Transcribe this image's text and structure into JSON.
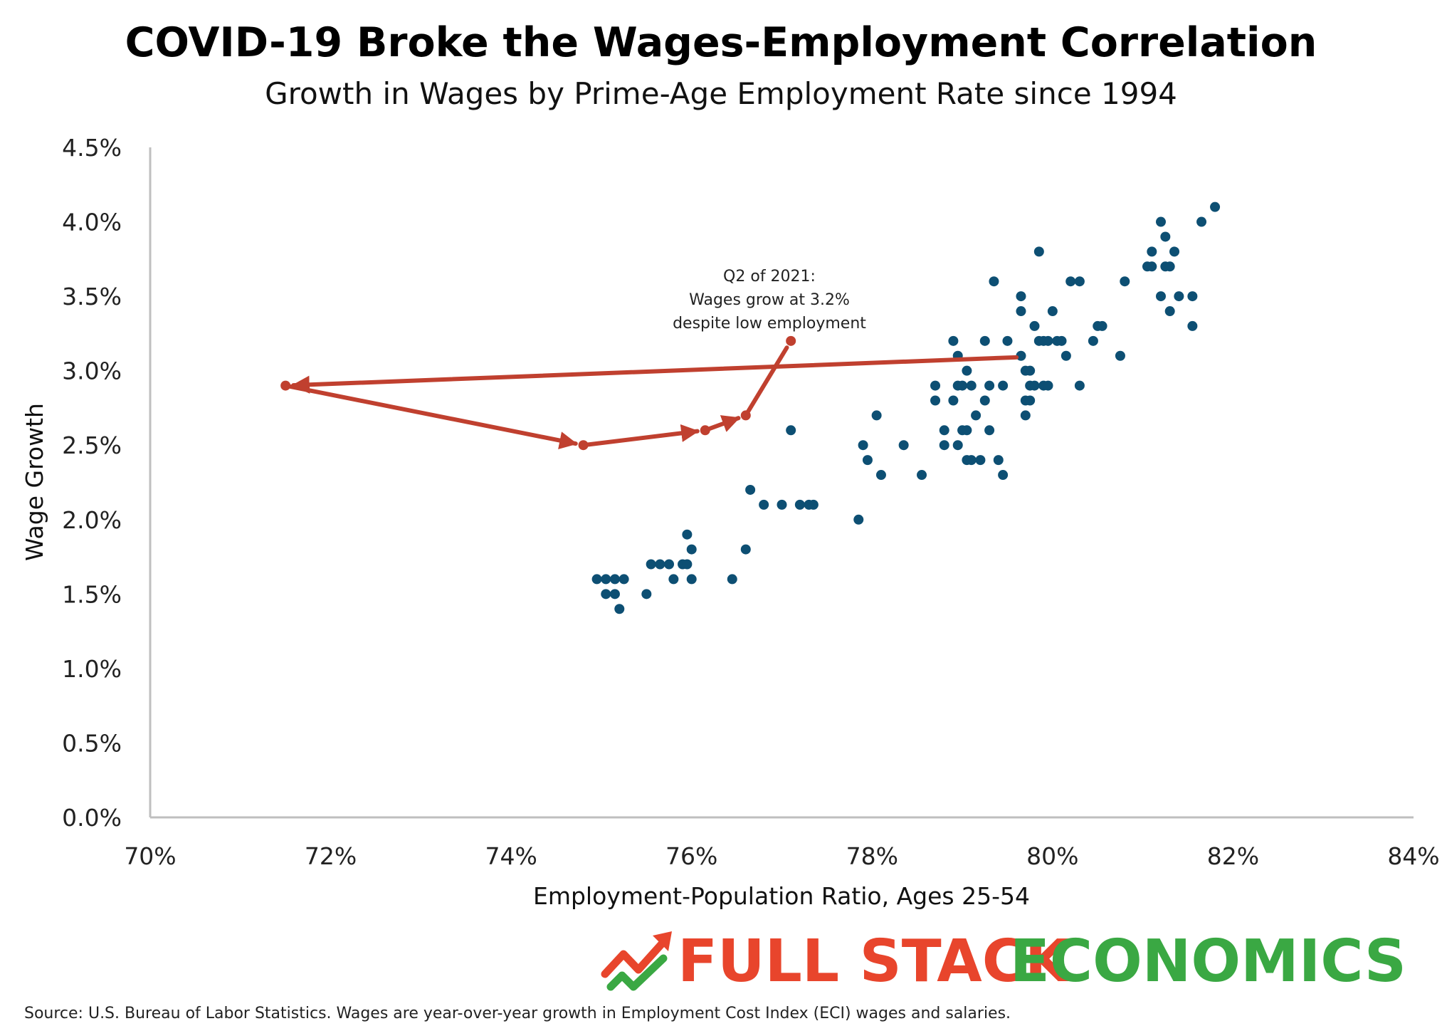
{
  "colors": {
    "dot": "#0d4f73",
    "path": "#c0402f",
    "axis": "#bfbfbf",
    "logo_red": "#e8452c",
    "logo_green": "#3aa843"
  },
  "chart_data": {
    "type": "scatter",
    "title": "COVID-19 Broke the Wages-Employment Correlation",
    "subtitle": "Growth in Wages by Prime-Age Employment Rate since 1994",
    "xlabel": "Employment-Population Ratio, Ages 25-54",
    "ylabel": "Wage Growth",
    "xlim": [
      70,
      84
    ],
    "ylim": [
      0,
      4.5
    ],
    "x_ticks": [
      70,
      72,
      74,
      76,
      78,
      80,
      82,
      84
    ],
    "x_tick_labels": [
      "70%",
      "72%",
      "74%",
      "76%",
      "78%",
      "80%",
      "82%",
      "84%"
    ],
    "y_ticks": [
      0,
      0.5,
      1,
      1.5,
      2,
      2.5,
      3,
      3.5,
      4,
      4.5
    ],
    "y_tick_labels": [
      "0.0%",
      "0.5%",
      "1.0%",
      "1.5%",
      "2.0%",
      "2.5%",
      "3.0%",
      "3.5%",
      "4.0%",
      "4.5%"
    ],
    "grid": false,
    "points": [
      [
        74.95,
        1.6
      ],
      [
        75.05,
        1.6
      ],
      [
        75.15,
        1.6
      ],
      [
        75.25,
        1.6
      ],
      [
        75.05,
        1.5
      ],
      [
        75.15,
        1.5
      ],
      [
        75.2,
        1.4
      ],
      [
        75.5,
        1.5
      ],
      [
        75.55,
        1.7
      ],
      [
        75.65,
        1.7
      ],
      [
        75.75,
        1.7
      ],
      [
        75.8,
        1.6
      ],
      [
        75.9,
        1.7
      ],
      [
        75.95,
        1.7
      ],
      [
        75.95,
        1.9
      ],
      [
        76.0,
        1.8
      ],
      [
        76.0,
        1.6
      ],
      [
        76.45,
        1.6
      ],
      [
        76.6,
        1.8
      ],
      [
        76.65,
        2.2
      ],
      [
        76.8,
        2.1
      ],
      [
        77.0,
        2.1
      ],
      [
        77.1,
        2.6
      ],
      [
        77.2,
        2.1
      ],
      [
        77.3,
        2.1
      ],
      [
        77.35,
        2.1
      ],
      [
        77.85,
        2.0
      ],
      [
        77.9,
        2.5
      ],
      [
        77.95,
        2.4
      ],
      [
        78.05,
        2.7
      ],
      [
        78.1,
        2.3
      ],
      [
        78.35,
        2.5
      ],
      [
        78.55,
        2.3
      ],
      [
        78.7,
        2.9
      ],
      [
        78.7,
        2.8
      ],
      [
        78.8,
        2.5
      ],
      [
        78.8,
        2.6
      ],
      [
        78.9,
        2.8
      ],
      [
        78.9,
        3.2
      ],
      [
        78.95,
        3.1
      ],
      [
        78.95,
        2.9
      ],
      [
        78.95,
        2.5
      ],
      [
        79.0,
        2.6
      ],
      [
        79.05,
        2.6
      ],
      [
        79.0,
        2.9
      ],
      [
        79.05,
        3.0
      ],
      [
        79.05,
        2.4
      ],
      [
        79.1,
        2.4
      ],
      [
        79.1,
        2.9
      ],
      [
        79.15,
        2.7
      ],
      [
        79.2,
        2.4
      ],
      [
        79.25,
        3.2
      ],
      [
        79.25,
        2.8
      ],
      [
        79.3,
        2.9
      ],
      [
        79.3,
        2.6
      ],
      [
        79.35,
        3.6
      ],
      [
        79.4,
        2.4
      ],
      [
        79.45,
        2.9
      ],
      [
        79.45,
        2.3
      ],
      [
        79.5,
        3.2
      ],
      [
        79.65,
        3.1
      ],
      [
        79.65,
        3.5
      ],
      [
        79.65,
        3.4
      ],
      [
        79.7,
        3.0
      ],
      [
        79.7,
        2.8
      ],
      [
        79.7,
        2.7
      ],
      [
        79.75,
        3.0
      ],
      [
        79.75,
        2.9
      ],
      [
        79.75,
        2.8
      ],
      [
        79.8,
        3.3
      ],
      [
        79.8,
        2.9
      ],
      [
        79.85,
        3.8
      ],
      [
        79.85,
        3.2
      ],
      [
        79.9,
        3.2
      ],
      [
        79.9,
        2.9
      ],
      [
        79.95,
        3.2
      ],
      [
        79.95,
        2.9
      ],
      [
        80.0,
        3.4
      ],
      [
        80.05,
        3.2
      ],
      [
        80.1,
        3.2
      ],
      [
        80.15,
        3.1
      ],
      [
        80.2,
        3.6
      ],
      [
        80.3,
        3.6
      ],
      [
        80.3,
        2.9
      ],
      [
        80.45,
        3.2
      ],
      [
        80.5,
        3.3
      ],
      [
        80.55,
        3.3
      ],
      [
        80.75,
        3.1
      ],
      [
        80.8,
        3.6
      ],
      [
        81.05,
        3.7
      ],
      [
        81.1,
        3.8
      ],
      [
        81.1,
        3.7
      ],
      [
        81.2,
        4.0
      ],
      [
        81.2,
        3.5
      ],
      [
        81.25,
        3.9
      ],
      [
        81.25,
        3.7
      ],
      [
        81.3,
        3.7
      ],
      [
        81.3,
        3.4
      ],
      [
        81.35,
        3.8
      ],
      [
        81.4,
        3.5
      ],
      [
        81.55,
        3.5
      ],
      [
        81.55,
        3.3
      ],
      [
        81.65,
        4.0
      ],
      [
        81.8,
        4.1
      ]
    ],
    "covid_path": [
      [
        79.6,
        3.09
      ],
      [
        71.5,
        2.9
      ],
      [
        74.8,
        2.5
      ],
      [
        76.15,
        2.6
      ],
      [
        76.6,
        2.7
      ],
      [
        77.1,
        3.2
      ]
    ],
    "annotation": {
      "lines": [
        "Q2 of 2021:",
        "Wages grow at 3.2%",
        "despite low employment"
      ]
    },
    "source": "Source: U.S. Bureau of Labor Statistics. Wages are year-over-year growth in Employment Cost Index (ECI) wages and salaries."
  },
  "logo": {
    "word1": "FULL STACK",
    "word2": "ECONOMICS"
  }
}
